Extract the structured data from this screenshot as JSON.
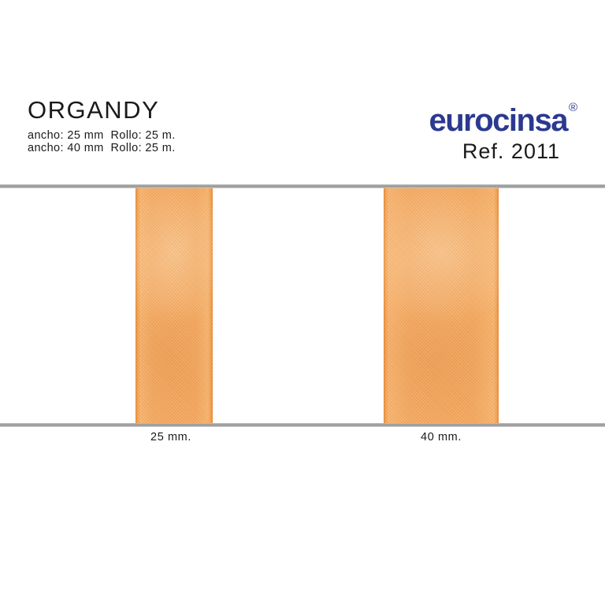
{
  "product": {
    "title": "ORGANDY",
    "specs": [
      "ancho: 25 mm  Rollo: 25 m.",
      "ancho: 40 mm  Rollo: 25 m."
    ]
  },
  "brand": {
    "name": "eurocinsa",
    "registered_mark": "®",
    "reference": "Ref. 2011"
  },
  "samples": [
    {
      "label": "25 mm."
    },
    {
      "label": "40 mm."
    }
  ],
  "colors": {
    "brand_blue": "#2b3990",
    "ribbon_orange": "#f3a75f",
    "ribbon_edge_orange": "#e6812e",
    "ribbon_highlight": "#f9c289",
    "rail_gray": "#9a9a9a",
    "text_black": "#1a1a1a",
    "background": "#ffffff"
  }
}
